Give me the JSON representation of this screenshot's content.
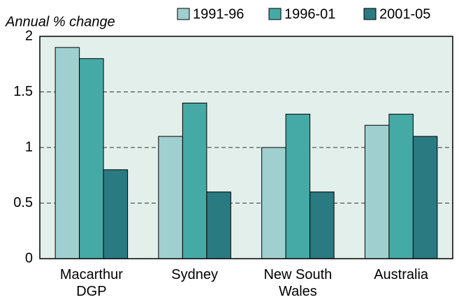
{
  "chart_data": {
    "type": "bar",
    "y_label": "Annual % change",
    "categories": [
      "Macarthur\nDGP",
      "Sydney",
      "New South\nWales",
      "Australia"
    ],
    "series": [
      {
        "name": "1991-96",
        "color": "#9fd0cf",
        "values": [
          1.9,
          1.1,
          1.0,
          1.2
        ]
      },
      {
        "name": "1996-01",
        "color": "#45aaa6",
        "values": [
          1.8,
          1.4,
          1.3,
          1.3
        ]
      },
      {
        "name": "2001-05",
        "color": "#2a7a82",
        "values": [
          0.8,
          0.6,
          0.6,
          1.1
        ]
      }
    ],
    "ylim": [
      0,
      2
    ],
    "yticks": [
      0,
      0.5,
      1,
      1.5,
      2
    ],
    "grid": true,
    "legend": "top"
  }
}
